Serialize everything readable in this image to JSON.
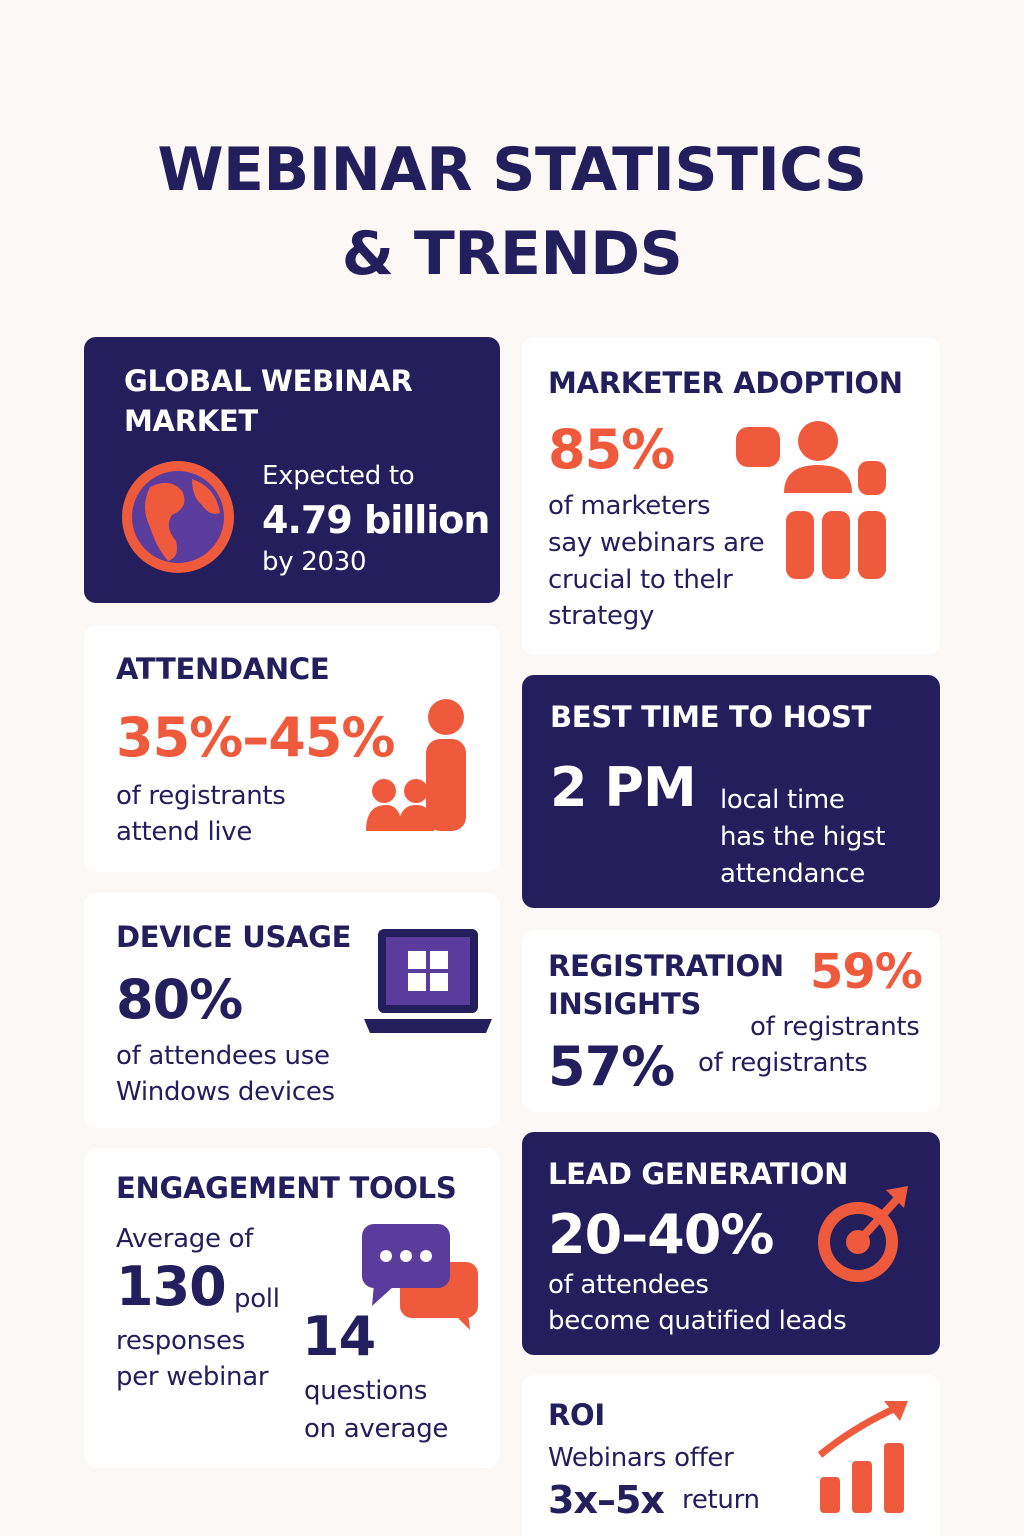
{
  "header": {
    "title_lines": [
      "WEBINAR STATISTICS",
      "& TRENDS"
    ]
  },
  "cards": [
    {
      "title_lines": [
        "GLOBAL WEBINAR",
        "MARKET"
      ],
      "intro": "Expected to",
      "stat": "4.79 billion",
      "note": "by 2030"
    },
    {
      "title": "MARKETER ADOPTION",
      "stat": "85%",
      "desc_lines": [
        "of marketers",
        "say webinars are",
        "crucial to thelr",
        "strategy"
      ]
    },
    {
      "title": "ATTENDANCE",
      "stat": "35%–45%",
      "desc_lines": [
        "of registrants",
        "attend live"
      ]
    },
    {
      "title": "BEST TIME TO HOST",
      "stat": "2 PM",
      "desc_lines": [
        "local time",
        "has the higst",
        "attendance"
      ]
    },
    {
      "title": "DEVICE USAGE",
      "stat": "80%",
      "desc_lines": [
        "of attendees use",
        "Windows devices"
      ]
    },
    {
      "title_lines": [
        "REGISTRATION",
        "INSIGHTS"
      ],
      "stats": [
        {
          "stat": "59%",
          "desc": "of registrants"
        },
        {
          "stat": "57%",
          "desc": "of registrants"
        }
      ]
    },
    {
      "title": "ENGAGEMENT TOOLS",
      "intro": "Average of",
      "stats": [
        {
          "stat": "130",
          "unit": "poll",
          "desc_lines": [
            "responses",
            "per webinar"
          ]
        },
        {
          "stat": "14",
          "desc_lines": [
            "questions",
            "on average"
          ]
        }
      ]
    },
    {
      "title": "LEAD GENERATION",
      "stat": "20–40%",
      "desc_lines": [
        "of attendees",
        "become quatified leads"
      ]
    },
    {
      "title": "ROI",
      "intro": "Webinars offer",
      "stat": "3x–5x",
      "unit": "return"
    }
  ]
}
